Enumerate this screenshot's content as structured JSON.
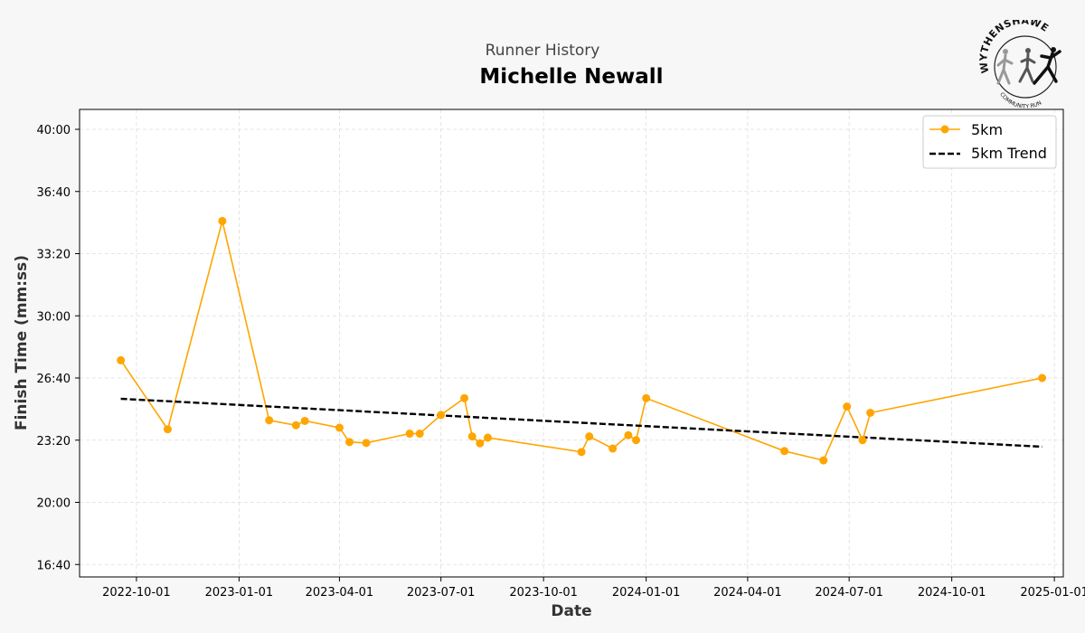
{
  "header": {
    "subtitle": "Runner History",
    "title": "Michelle Newall"
  },
  "logo": {
    "top_text": "WYTHENSHAWE",
    "bottom_text": "COMMUNITY RUN"
  },
  "chart_data": {
    "type": "line",
    "title": "Michelle Newall",
    "subtitle": "Runner History",
    "xlabel": "Date",
    "ylabel": "Finish Time (mm:ss)",
    "x_ticks": [
      "2022-10-01",
      "2023-01-01",
      "2023-04-01",
      "2023-07-01",
      "2023-10-01",
      "2024-01-01",
      "2024-04-01",
      "2024-07-01",
      "2024-10-01",
      "2025-01-01"
    ],
    "y_ticks": [
      "16:40",
      "20:00",
      "23:20",
      "26:40",
      "30:00",
      "33:20",
      "36:40",
      "40:00"
    ],
    "xlim": [
      "2022-08-11",
      "2025-01-09"
    ],
    "ylim": [
      "16:00",
      "41:04"
    ],
    "grid": true,
    "legend_position": "top-right",
    "series": [
      {
        "name": "5km",
        "color": "#FFA500",
        "marker": "circle",
        "points": [
          {
            "x": "2022-09-17",
            "y": "27:37"
          },
          {
            "x": "2022-10-29",
            "y": "23:55"
          },
          {
            "x": "2022-12-17",
            "y": "35:05"
          },
          {
            "x": "2023-01-28",
            "y": "24:24"
          },
          {
            "x": "2023-02-21",
            "y": "24:08"
          },
          {
            "x": "2023-03-01",
            "y": "24:22"
          },
          {
            "x": "2023-04-01",
            "y": "24:00"
          },
          {
            "x": "2023-04-10",
            "y": "23:14"
          },
          {
            "x": "2023-04-25",
            "y": "23:11"
          },
          {
            "x": "2023-06-03",
            "y": "23:41"
          },
          {
            "x": "2023-06-12",
            "y": "23:41"
          },
          {
            "x": "2023-07-01",
            "y": "24:41"
          },
          {
            "x": "2023-07-22",
            "y": "25:35"
          },
          {
            "x": "2023-07-29",
            "y": "23:32"
          },
          {
            "x": "2023-08-05",
            "y": "23:10"
          },
          {
            "x": "2023-08-12",
            "y": "23:28"
          },
          {
            "x": "2023-11-04",
            "y": "22:42"
          },
          {
            "x": "2023-11-11",
            "y": "23:32"
          },
          {
            "x": "2023-12-02",
            "y": "22:53"
          },
          {
            "x": "2023-12-16",
            "y": "23:36"
          },
          {
            "x": "2023-12-23",
            "y": "23:20"
          },
          {
            "x": "2024-01-01",
            "y": "25:35"
          },
          {
            "x": "2024-05-04",
            "y": "22:45"
          },
          {
            "x": "2024-06-08",
            "y": "22:15"
          },
          {
            "x": "2024-06-29",
            "y": "25:08"
          },
          {
            "x": "2024-07-13",
            "y": "23:20"
          },
          {
            "x": "2024-07-20",
            "y": "24:48"
          },
          {
            "x": "2024-12-21",
            "y": "26:40"
          }
        ]
      },
      {
        "name": "5km Trend",
        "color": "#000000",
        "style": "dashed",
        "points": [
          {
            "x": "2022-09-17",
            "y": "25:33"
          },
          {
            "x": "2024-12-21",
            "y": "22:59"
          }
        ]
      }
    ]
  }
}
